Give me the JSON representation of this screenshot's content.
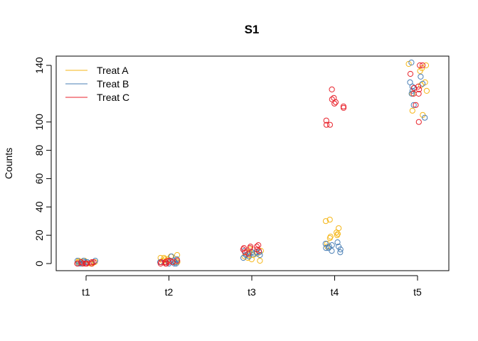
{
  "chart_data": {
    "type": "scatter",
    "title": "S1",
    "xlabel": "",
    "ylabel": "Counts",
    "categories": [
      "t1",
      "t2",
      "t3",
      "t4",
      "t5"
    ],
    "ylim": [
      -5,
      145
    ],
    "yticks": [
      0,
      20,
      40,
      60,
      80,
      100,
      140
    ],
    "grid": false,
    "legend_position": "top-left",
    "series": [
      {
        "name": "Treat A",
        "color": "#F5B617",
        "points": [
          [
            "t1",
            0
          ],
          [
            "t1",
            1
          ],
          [
            "t1",
            2
          ],
          [
            "t1",
            0
          ],
          [
            "t1",
            1
          ],
          [
            "t1",
            0
          ],
          [
            "t1",
            2
          ],
          [
            "t1",
            1
          ],
          [
            "t1",
            0
          ],
          [
            "t1",
            0
          ],
          [
            "t2",
            3
          ],
          [
            "t2",
            4
          ],
          [
            "t2",
            2
          ],
          [
            "t2",
            6
          ],
          [
            "t2",
            1
          ],
          [
            "t2",
            3
          ],
          [
            "t2",
            5
          ],
          [
            "t2",
            2
          ],
          [
            "t2",
            4
          ],
          [
            "t2",
            1
          ],
          [
            "t3",
            3
          ],
          [
            "t3",
            6
          ],
          [
            "t3",
            8
          ],
          [
            "t3",
            4
          ],
          [
            "t3",
            10
          ],
          [
            "t3",
            7
          ],
          [
            "t3",
            2
          ],
          [
            "t3",
            9
          ],
          [
            "t3",
            5
          ],
          [
            "t3",
            6
          ],
          [
            "t4",
            31
          ],
          [
            "t4",
            30
          ],
          [
            "t4",
            25
          ],
          [
            "t4",
            22
          ],
          [
            "t4",
            21
          ],
          [
            "t4",
            19
          ],
          [
            "t4",
            14
          ],
          [
            "t4",
            20
          ],
          [
            "t4",
            18
          ],
          [
            "t4",
            12
          ],
          [
            "t5",
            141
          ],
          [
            "t5",
            140
          ],
          [
            "t5",
            138
          ],
          [
            "t5",
            136
          ],
          [
            "t5",
            128
          ],
          [
            "t5",
            126
          ],
          [
            "t5",
            122
          ],
          [
            "t5",
            120
          ],
          [
            "t5",
            108
          ],
          [
            "t5",
            105
          ]
        ]
      },
      {
        "name": "Treat B",
        "color": "#4A7FB5",
        "points": [
          [
            "t1",
            1
          ],
          [
            "t1",
            2
          ],
          [
            "t1",
            0
          ],
          [
            "t1",
            1
          ],
          [
            "t1",
            0
          ],
          [
            "t1",
            2
          ],
          [
            "t1",
            1
          ],
          [
            "t1",
            0
          ],
          [
            "t1",
            1
          ],
          [
            "t1",
            2
          ],
          [
            "t2",
            5
          ],
          [
            "t2",
            1
          ],
          [
            "t2",
            0
          ],
          [
            "t2",
            2
          ],
          [
            "t2",
            3
          ],
          [
            "t2",
            1
          ],
          [
            "t2",
            0
          ],
          [
            "t2",
            2
          ],
          [
            "t2",
            1
          ],
          [
            "t2",
            0
          ],
          [
            "t3",
            8
          ],
          [
            "t3",
            5
          ],
          [
            "t3",
            7
          ],
          [
            "t3",
            9
          ],
          [
            "t3",
            4
          ],
          [
            "t3",
            6
          ],
          [
            "t3",
            8
          ],
          [
            "t3",
            7
          ],
          [
            "t3",
            6
          ],
          [
            "t3",
            8
          ],
          [
            "t4",
            15
          ],
          [
            "t4",
            14
          ],
          [
            "t4",
            13
          ],
          [
            "t4",
            12
          ],
          [
            "t4",
            12
          ],
          [
            "t4",
            11
          ],
          [
            "t4",
            11
          ],
          [
            "t4",
            10
          ],
          [
            "t4",
            9
          ],
          [
            "t4",
            8
          ],
          [
            "t5",
            142
          ],
          [
            "t5",
            132
          ],
          [
            "t5",
            128
          ],
          [
            "t5",
            127
          ],
          [
            "t5",
            125
          ],
          [
            "t5",
            124
          ],
          [
            "t5",
            120
          ],
          [
            "t5",
            112
          ],
          [
            "t5",
            103
          ],
          [
            "t5",
            122
          ]
        ]
      },
      {
        "name": "Treat C",
        "color": "#E8222B",
        "points": [
          [
            "t1",
            0
          ],
          [
            "t1",
            0
          ],
          [
            "t1",
            1
          ],
          [
            "t1",
            0
          ],
          [
            "t1",
            1
          ],
          [
            "t1",
            0
          ],
          [
            "t1",
            0
          ],
          [
            "t1",
            1
          ],
          [
            "t1",
            0
          ],
          [
            "t1",
            0
          ],
          [
            "t2",
            2
          ],
          [
            "t2",
            1
          ],
          [
            "t2",
            0
          ],
          [
            "t2",
            1
          ],
          [
            "t2",
            2
          ],
          [
            "t2",
            0
          ],
          [
            "t2",
            1
          ],
          [
            "t2",
            0
          ],
          [
            "t2",
            2
          ],
          [
            "t2",
            1
          ],
          [
            "t3",
            13
          ],
          [
            "t3",
            12
          ],
          [
            "t3",
            11
          ],
          [
            "t3",
            10
          ],
          [
            "t3",
            9
          ],
          [
            "t3",
            8
          ],
          [
            "t3",
            12
          ],
          [
            "t3",
            7
          ],
          [
            "t3",
            11
          ],
          [
            "t3",
            10
          ],
          [
            "t4",
            123
          ],
          [
            "t4",
            117
          ],
          [
            "t4",
            116
          ],
          [
            "t4",
            114
          ],
          [
            "t4",
            113
          ],
          [
            "t4",
            111
          ],
          [
            "t4",
            110
          ],
          [
            "t4",
            101
          ],
          [
            "t4",
            98
          ],
          [
            "t4",
            98
          ],
          [
            "t5",
            140
          ],
          [
            "t5",
            134
          ],
          [
            "t5",
            125
          ],
          [
            "t5",
            124
          ],
          [
            "t5",
            123
          ],
          [
            "t5",
            120
          ],
          [
            "t5",
            120
          ],
          [
            "t5",
            112
          ],
          [
            "t5",
            100
          ],
          [
            "t5",
            140
          ]
        ]
      }
    ]
  }
}
